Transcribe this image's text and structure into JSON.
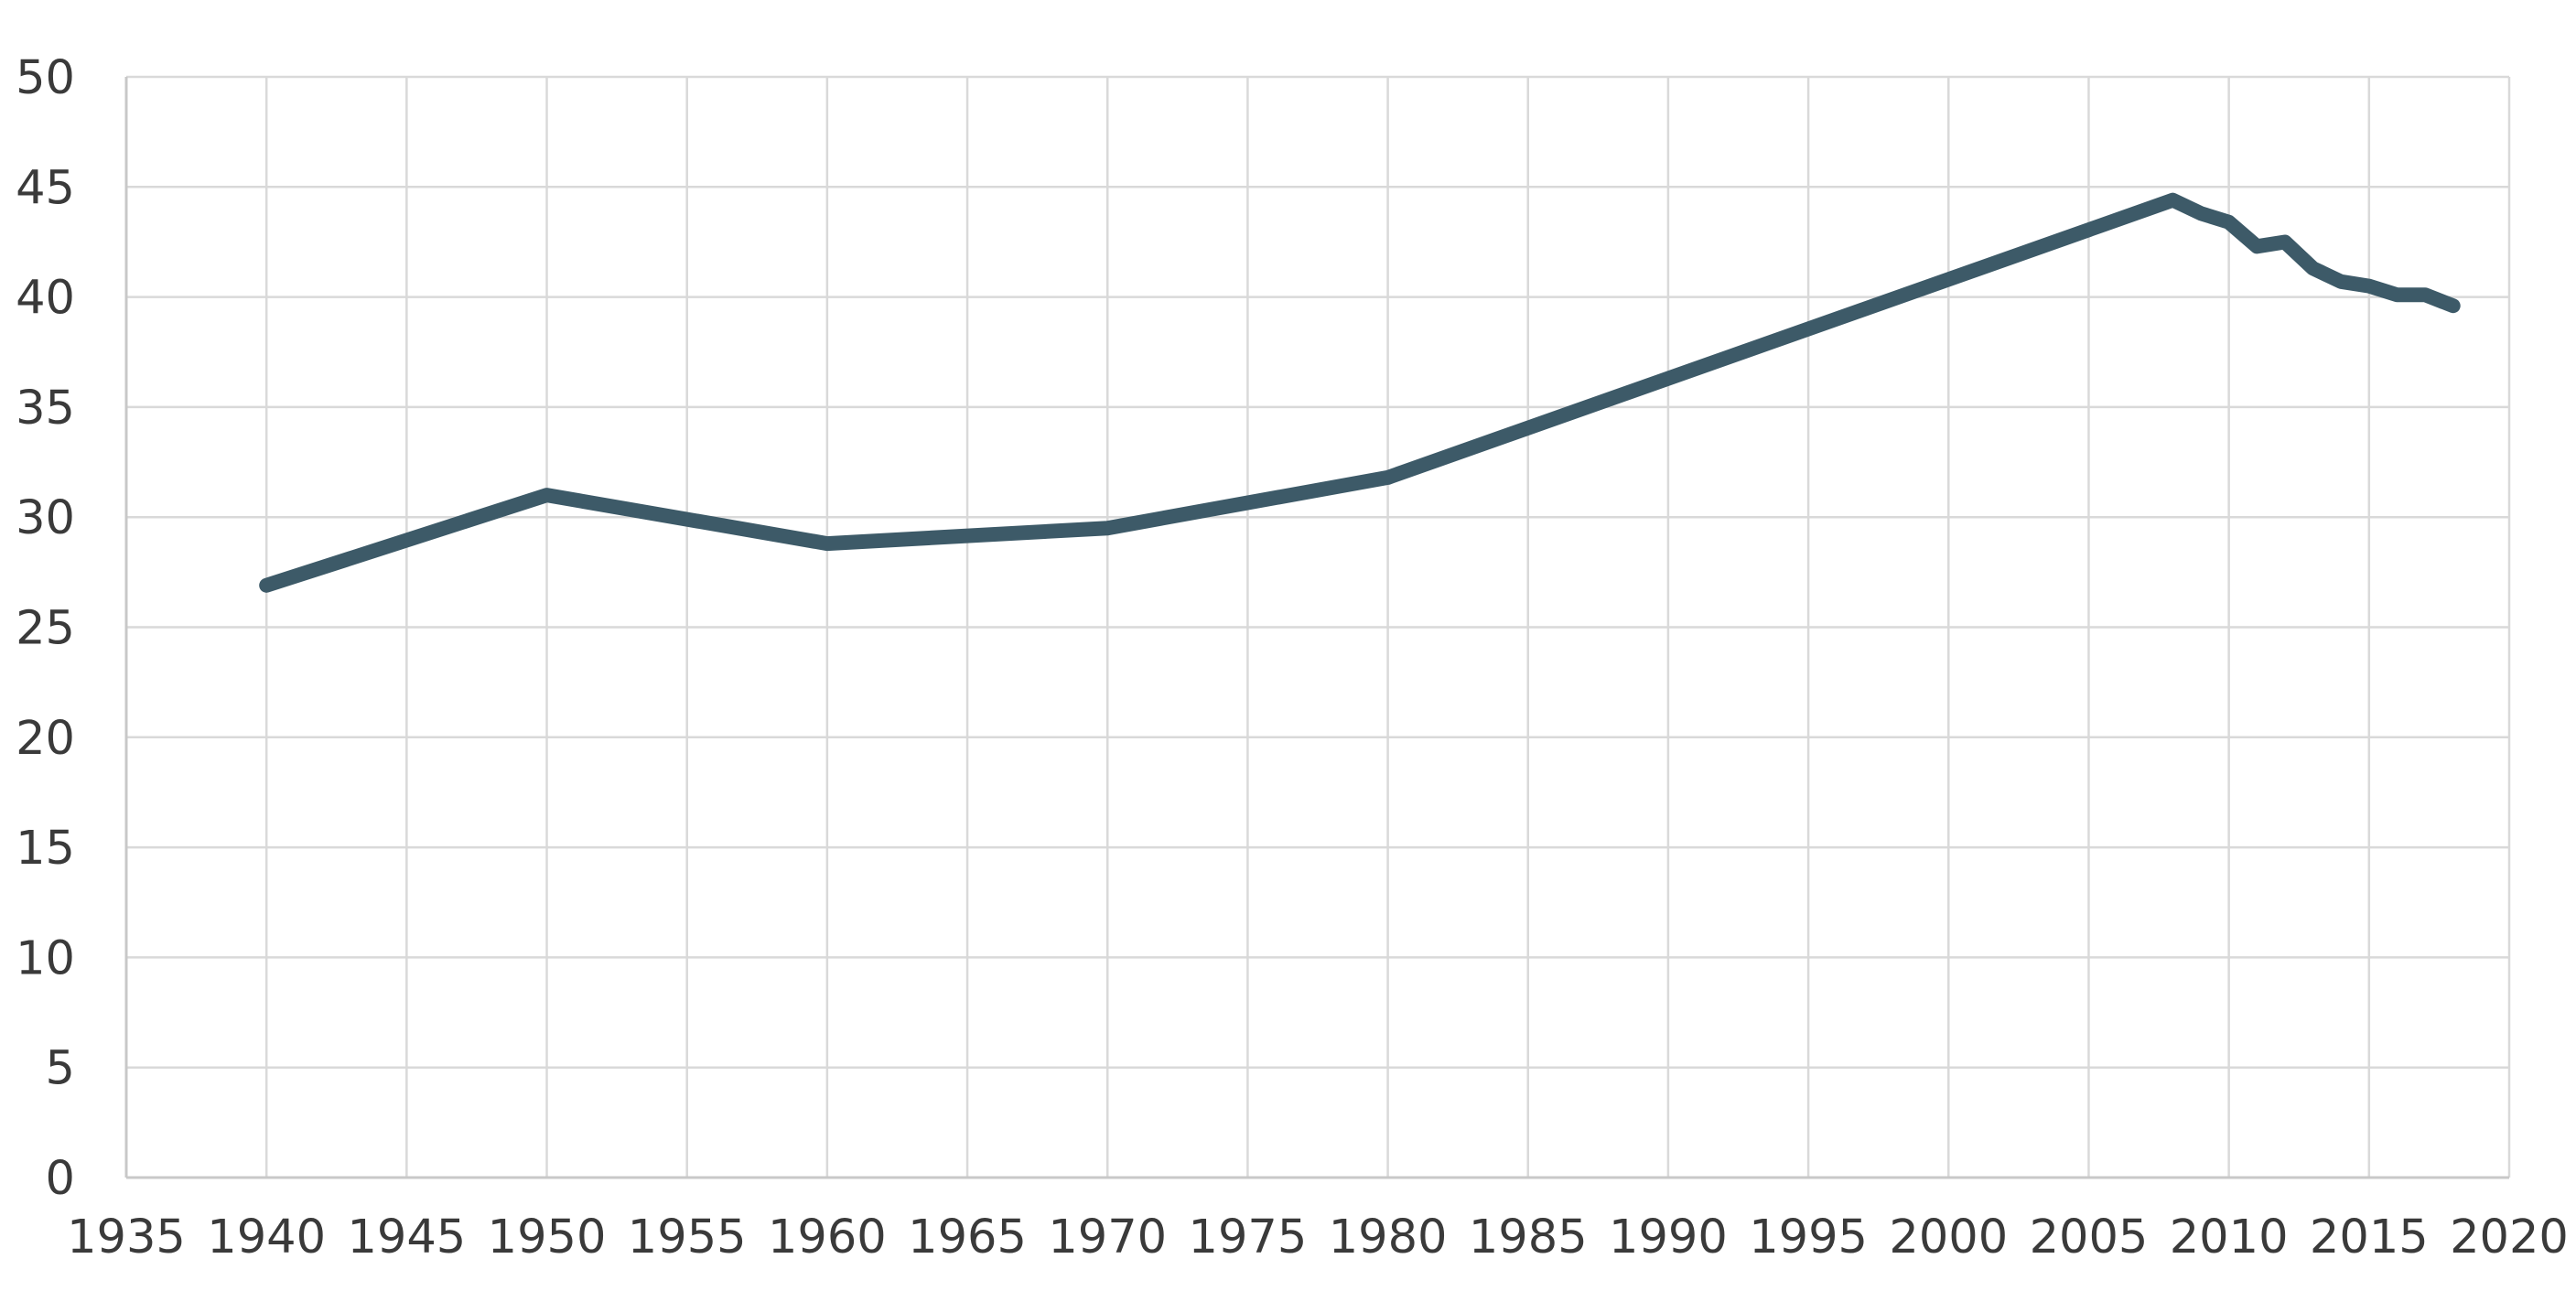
{
  "chart_data": {
    "type": "line",
    "title": "",
    "xlabel": "",
    "ylabel": "",
    "xlim": [
      1935,
      2020
    ],
    "ylim": [
      0,
      50
    ],
    "xticks": [
      "1935",
      "1940",
      "1945",
      "1950",
      "1955",
      "1960",
      "1965",
      "1970",
      "1975",
      "1980",
      "1985",
      "1990",
      "1995",
      "2000",
      "2005",
      "2010",
      "2015",
      "2020"
    ],
    "yticks": [
      "0",
      "5",
      "10",
      "15",
      "20",
      "25",
      "30",
      "35",
      "40",
      "45",
      "50"
    ],
    "grid": true,
    "legend": false,
    "line_color": "#3d5a68",
    "grid_color": "#d9d9d9",
    "series": [
      {
        "x": [
          1940,
          1950,
          1960,
          1970,
          1980,
          2008,
          2009,
          2010,
          2011,
          2012,
          2013,
          2014,
          2015,
          2016,
          2017,
          2018
        ],
        "values": [
          26.9,
          31.0,
          28.8,
          29.5,
          31.8,
          44.4,
          43.8,
          43.4,
          42.3,
          42.5,
          41.3,
          40.7,
          40.5,
          40.1,
          40.1,
          39.6
        ]
      }
    ]
  }
}
